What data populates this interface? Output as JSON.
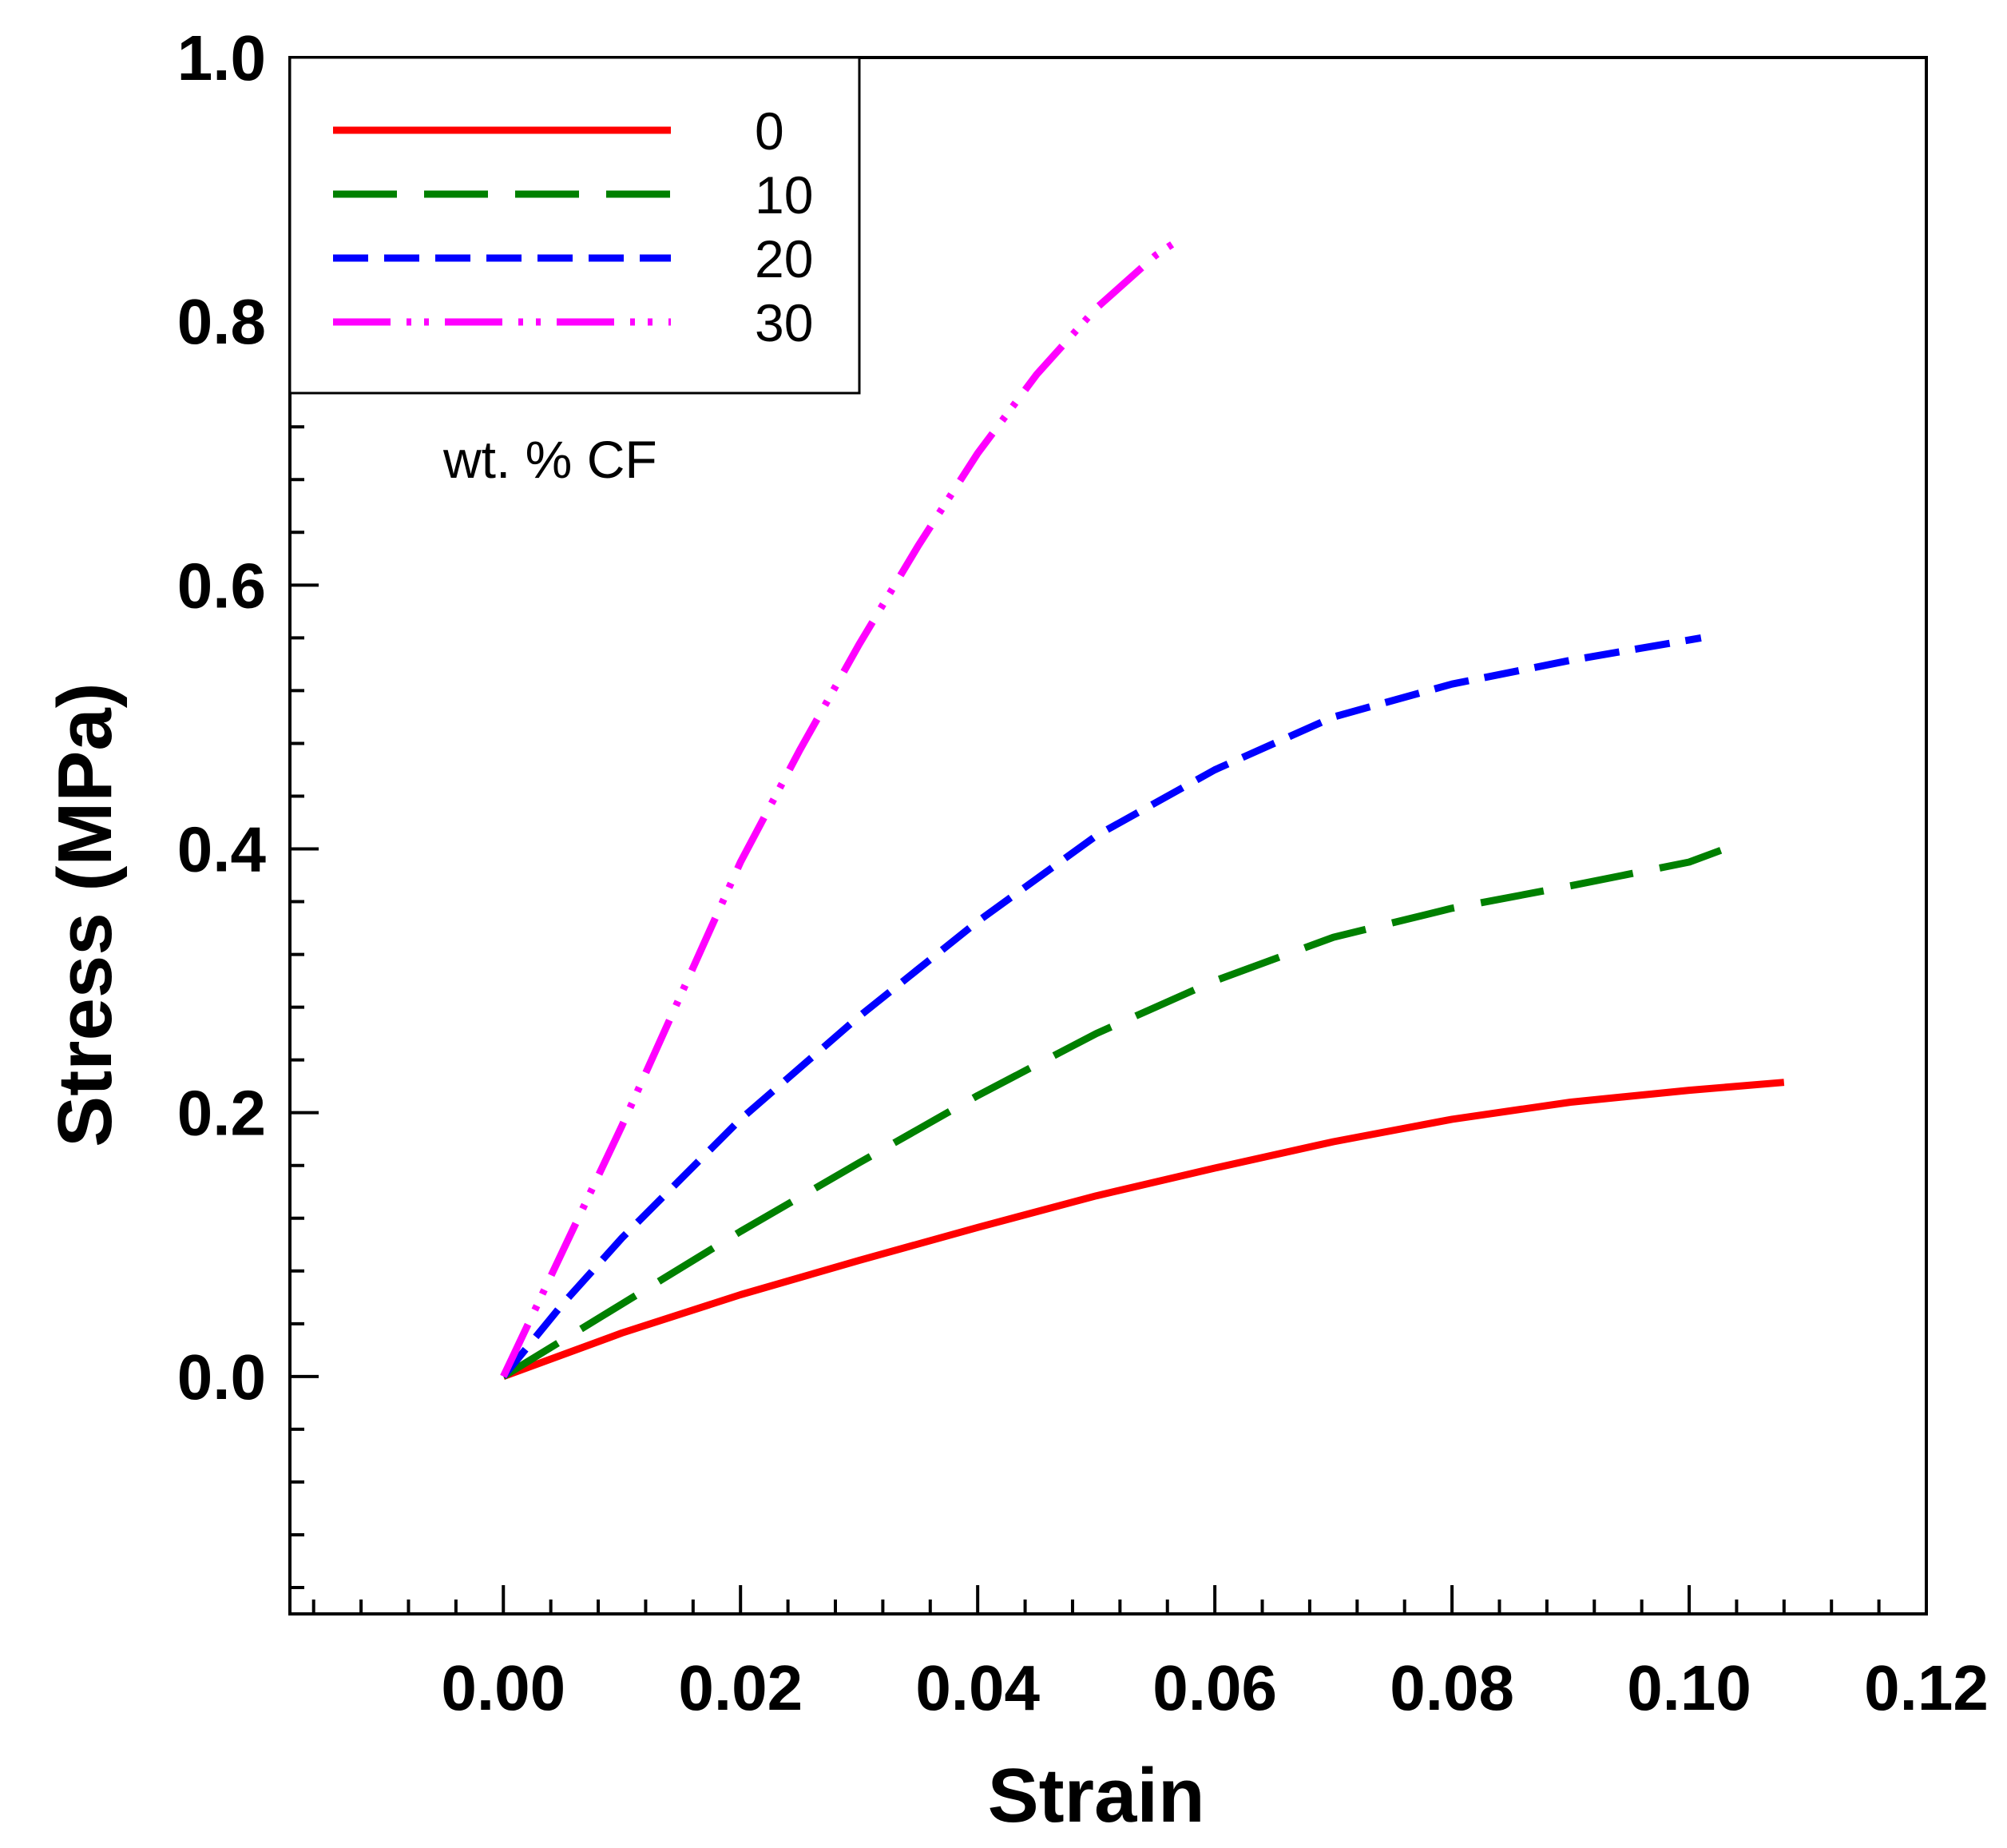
{
  "chart_data": {
    "type": "line",
    "title": "",
    "xlabel": "Strain",
    "ylabel": "Stress (MPa)",
    "xlim": [
      -0.018,
      0.12
    ],
    "ylim": [
      -0.18,
      1.0
    ],
    "x_ticks": [
      0.0,
      0.02,
      0.04,
      0.06,
      0.08,
      0.1,
      0.12
    ],
    "x_tick_labels": [
      "0.00",
      "0.02",
      "0.04",
      "0.06",
      "0.08",
      "0.10",
      "0.12"
    ],
    "y_ticks": [
      0.0,
      0.2,
      0.4,
      0.6,
      0.8,
      1.0
    ],
    "y_tick_labels": [
      "0.0",
      "0.2",
      "0.4",
      "0.6",
      "0.8",
      "1.0"
    ],
    "x_minor_step": 0.004,
    "y_minor_step": 0.04,
    "grid": false,
    "legend": {
      "position": "top-left",
      "title": "wt. % CF"
    },
    "series": [
      {
        "name": "0",
        "color": "#ff0000",
        "style": "solid",
        "x": [
          0,
          0.01,
          0.02,
          0.03,
          0.04,
          0.05,
          0.06,
          0.07,
          0.08,
          0.09,
          0.1,
          0.108
        ],
        "y": [
          0,
          0.033,
          0.062,
          0.088,
          0.113,
          0.137,
          0.158,
          0.178,
          0.195,
          0.208,
          0.217,
          0.223
        ]
      },
      {
        "name": "10",
        "color": "#008000",
        "style": "long-dash",
        "x": [
          0,
          0.01,
          0.02,
          0.03,
          0.04,
          0.05,
          0.06,
          0.07,
          0.08,
          0.09,
          0.1,
          0.103
        ],
        "y": [
          0,
          0.055,
          0.11,
          0.162,
          0.213,
          0.26,
          0.3,
          0.333,
          0.355,
          0.372,
          0.39,
          0.4
        ]
      },
      {
        "name": "20",
        "color": "#0000ff",
        "style": "short-dash",
        "x": [
          0,
          0.005,
          0.01,
          0.02,
          0.03,
          0.04,
          0.05,
          0.06,
          0.07,
          0.08,
          0.09,
          0.101
        ],
        "y": [
          0,
          0.055,
          0.105,
          0.195,
          0.273,
          0.345,
          0.41,
          0.46,
          0.5,
          0.525,
          0.543,
          0.56
        ]
      },
      {
        "name": "30",
        "color": "#ff00ff",
        "style": "dash-dot-dot",
        "x": [
          0,
          0.005,
          0.01,
          0.015,
          0.02,
          0.025,
          0.03,
          0.035,
          0.04,
          0.045,
          0.05,
          0.055,
          0.0575
        ],
        "y": [
          0,
          0.095,
          0.19,
          0.29,
          0.39,
          0.475,
          0.555,
          0.63,
          0.7,
          0.76,
          0.81,
          0.85,
          0.865
        ]
      }
    ]
  }
}
